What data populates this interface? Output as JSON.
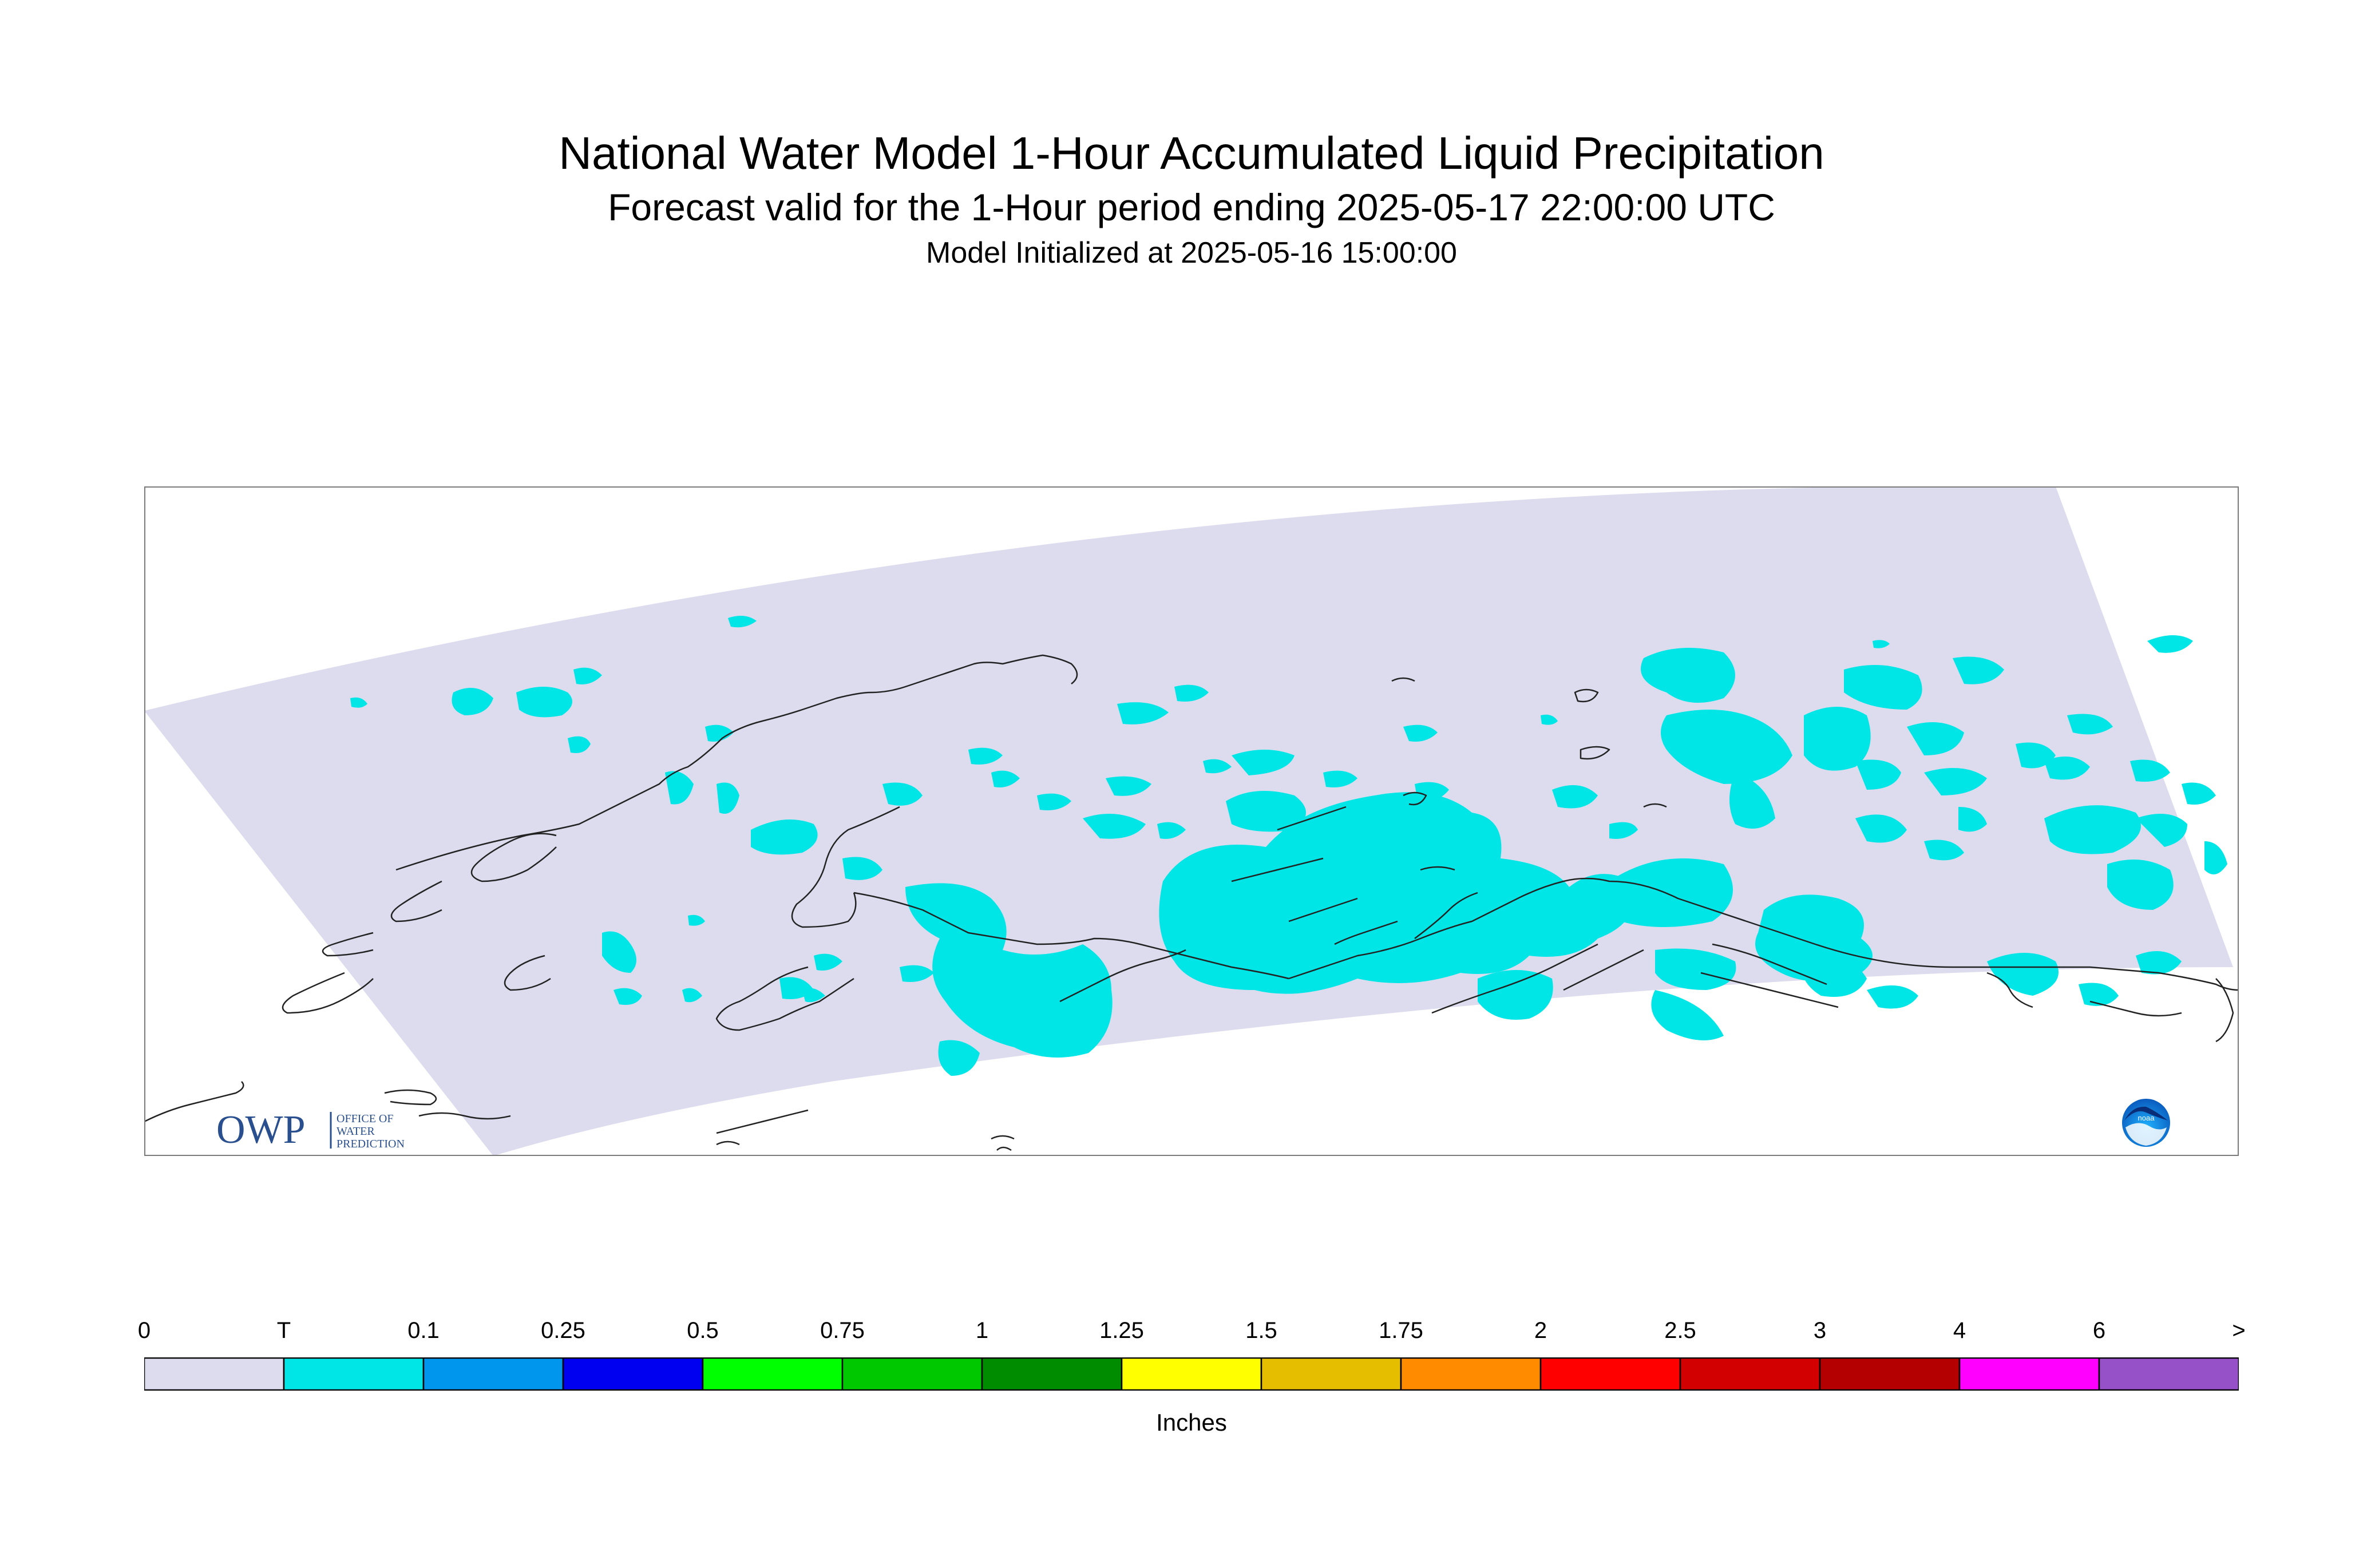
{
  "title": "National Water Model 1-Hour Accumulated Liquid Precipitation",
  "subtitle": "Forecast valid for the 1-Hour period ending 2025-05-17 22:00:00 UTC",
  "initialized": "Model Initialized at 2025-05-16 15:00:00",
  "logos": {
    "owp_letters": "OWP",
    "owp_text_lines": [
      "OFFICE OF",
      "WATER",
      "PREDICTION"
    ],
    "noaa_text": "noaa"
  },
  "map": {
    "domain_fill_color": "#dcdcee",
    "precip_fill_color": "#00e6e6",
    "coastline_color": "#222222"
  },
  "legend": {
    "tick_labels": [
      "0",
      "T",
      "0.1",
      "0.25",
      "0.5",
      "0.75",
      "1",
      "1.25",
      "1.5",
      "1.75",
      "2",
      "2.5",
      "3",
      "4",
      "6",
      ">"
    ],
    "colors": [
      "#dcdcee",
      "#00e6e6",
      "#0096ee",
      "#0000f0",
      "#00ff00",
      "#00c800",
      "#008c00",
      "#ffff00",
      "#e6be00",
      "#ff8c00",
      "#ff0000",
      "#d20000",
      "#b40000",
      "#ff00ff",
      "#9650c8"
    ],
    "units": "Inches"
  }
}
